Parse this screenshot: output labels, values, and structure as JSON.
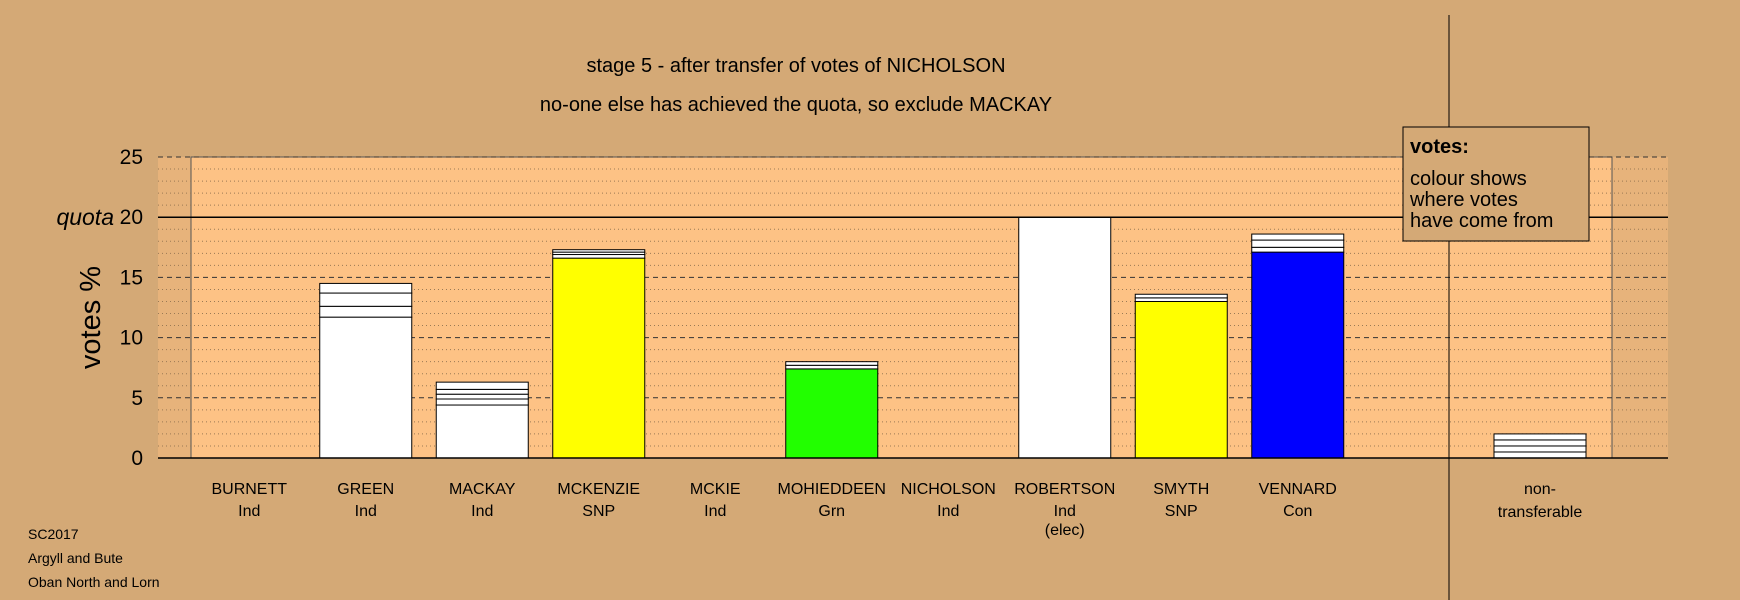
{
  "chart_data": {
    "type": "bar",
    "title": "stage 5 - after transfer of votes of NICHOLSON",
    "subtitle": "no-one else has achieved the quota, so exclude MACKAY",
    "ylabel": "votes %",
    "ylim": [
      0,
      25
    ],
    "yticks": [
      "0",
      "5",
      "10",
      "15",
      "20",
      "25"
    ],
    "quota": {
      "label": "quota",
      "value": 20
    },
    "categories": [
      {
        "name": "BURNETT",
        "party": "Ind",
        "note": "",
        "total": 0,
        "segments": []
      },
      {
        "name": "GREEN",
        "party": "Ind",
        "note": "",
        "total": 14.5,
        "segments": [
          {
            "value": 11.7,
            "color": "#ffffff"
          },
          {
            "value": 0.9,
            "color": "#ffffff"
          },
          {
            "value": 1.1,
            "color": "#ffffff"
          },
          {
            "value": 0.8,
            "color": "#ffffff"
          }
        ]
      },
      {
        "name": "MACKAY",
        "party": "Ind",
        "note": "",
        "total": 6.3,
        "segments": [
          {
            "value": 4.4,
            "color": "#ffffff"
          },
          {
            "value": 0.5,
            "color": "#ffffff"
          },
          {
            "value": 0.4,
            "color": "#ffffff"
          },
          {
            "value": 0.4,
            "color": "#ffffff"
          },
          {
            "value": 0.6,
            "color": "#ffffff"
          }
        ]
      },
      {
        "name": "MCKENZIE",
        "party": "SNP",
        "note": "",
        "total": 17.3,
        "segments": [
          {
            "value": 16.6,
            "color": "#ffff00"
          },
          {
            "value": 0.3,
            "color": "#ffffff"
          },
          {
            "value": 0.2,
            "color": "#ffffff"
          },
          {
            "value": 0.2,
            "color": "#ffffff"
          }
        ]
      },
      {
        "name": "MCKIE",
        "party": "Ind",
        "note": "",
        "total": 0,
        "segments": []
      },
      {
        "name": "MOHIEDDEEN",
        "party": "Grn",
        "note": "",
        "total": 8.0,
        "segments": [
          {
            "value": 7.4,
            "color": "#22ff00"
          },
          {
            "value": 0.3,
            "color": "#ffffff"
          },
          {
            "value": 0.3,
            "color": "#ffffff"
          }
        ]
      },
      {
        "name": "NICHOLSON",
        "party": "Ind",
        "note": "",
        "total": 0,
        "segments": []
      },
      {
        "name": "ROBERTSON",
        "party": "Ind",
        "note": "(elec)",
        "total": 20,
        "segments": [
          {
            "value": 20,
            "color": "#ffffff"
          }
        ]
      },
      {
        "name": "SMYTH",
        "party": "SNP",
        "note": "",
        "total": 13.6,
        "segments": [
          {
            "value": 13.0,
            "color": "#ffff00"
          },
          {
            "value": 0.3,
            "color": "#ffffff"
          },
          {
            "value": 0.3,
            "color": "#ffffff"
          }
        ]
      },
      {
        "name": "VENNARD",
        "party": "Con",
        "note": "",
        "total": 18.6,
        "segments": [
          {
            "value": 17.1,
            "color": "#0000ff"
          },
          {
            "value": 0.4,
            "color": "#ffffff"
          },
          {
            "value": 0.6,
            "color": "#ffffff"
          },
          {
            "value": 0.5,
            "color": "#ffffff"
          }
        ]
      }
    ],
    "nontransferable": {
      "label_line1": "non-",
      "label_line2": "transferable",
      "total": 2.0,
      "segments": [
        {
          "value": 0.5,
          "color": "#ffffff"
        },
        {
          "value": 0.5,
          "color": "#ffffff"
        },
        {
          "value": 0.5,
          "color": "#ffffff"
        },
        {
          "value": 0.5,
          "color": "#ffffff"
        }
      ]
    },
    "legend": {
      "title": "votes:",
      "lines": [
        "colour shows",
        "where votes",
        "have come from"
      ],
      "placement": "top-right"
    },
    "colors": {
      "background": "#d4a976",
      "plot_area": "#fdc285",
      "margin_band": "#e7b37b"
    }
  },
  "footer": {
    "line1": "SC2017",
    "line2": "Argyll and Bute",
    "line3": "Oban North and Lorn"
  }
}
